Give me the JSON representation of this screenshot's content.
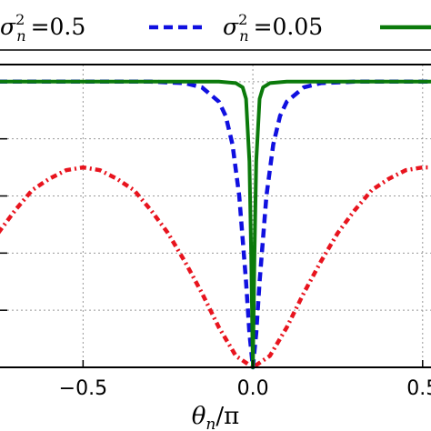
{
  "chart_data": {
    "type": "line",
    "title": "",
    "xlabel": "θn/π",
    "ylabel": "",
    "xlim": [
      -0.75,
      0.53
    ],
    "ylim": [
      0,
      1.06
    ],
    "grid": true,
    "legend_position": "top",
    "x_ticks": [
      {
        "value": -0.5,
        "label": "−0.5"
      },
      {
        "value": 0.0,
        "label": "0.0"
      },
      {
        "value": 0.5,
        "label": "0.5"
      }
    ],
    "series": [
      {
        "name": "σn² =0.5",
        "symbol": "σ",
        "sub": "n",
        "sup": "2",
        "value": "=0.5",
        "color": "#e8141e",
        "style": "dash-dot",
        "x": [
          -0.75,
          -0.7,
          -0.65,
          -0.6,
          -0.55,
          -0.5,
          -0.45,
          -0.4,
          -0.35,
          -0.3,
          -0.25,
          -0.2,
          -0.15,
          -0.1,
          -0.05,
          0.0,
          0.05,
          0.1,
          0.15,
          0.2,
          0.25,
          0.3,
          0.35,
          0.4,
          0.45,
          0.5,
          0.53
        ],
        "y": [
          0.47,
          0.55,
          0.62,
          0.66,
          0.69,
          0.7,
          0.69,
          0.66,
          0.62,
          0.55,
          0.47,
          0.37,
          0.26,
          0.14,
          0.04,
          0.0,
          0.04,
          0.14,
          0.26,
          0.37,
          0.47,
          0.55,
          0.62,
          0.66,
          0.69,
          0.7,
          0.7
        ]
      },
      {
        "name": "σn² =0.05",
        "symbol": "σ",
        "sub": "n",
        "sup": "2",
        "value": "=0.05",
        "color": "#1010e0",
        "style": "dashed",
        "x": [
          -0.75,
          -0.3,
          -0.2,
          -0.15,
          -0.1,
          -0.08,
          -0.06,
          -0.04,
          -0.02,
          -0.01,
          0.0,
          0.01,
          0.02,
          0.04,
          0.06,
          0.08,
          0.1,
          0.15,
          0.2,
          0.3,
          0.53
        ],
        "y": [
          1.0,
          1.0,
          0.995,
          0.98,
          0.93,
          0.88,
          0.78,
          0.6,
          0.3,
          0.12,
          0.0,
          0.12,
          0.3,
          0.6,
          0.78,
          0.88,
          0.93,
          0.98,
          0.995,
          1.0,
          1.0
        ]
      },
      {
        "name": "",
        "color": "#0b7a0b",
        "style": "solid",
        "x": [
          -0.75,
          -0.1,
          -0.05,
          -0.03,
          -0.02,
          -0.01,
          -0.005,
          0.0,
          0.005,
          0.01,
          0.02,
          0.03,
          0.05,
          0.1,
          0.53
        ],
        "y": [
          1.0,
          1.0,
          0.995,
          0.98,
          0.94,
          0.72,
          0.4,
          0.0,
          0.4,
          0.72,
          0.94,
          0.98,
          0.995,
          1.0,
          1.0
        ]
      }
    ]
  }
}
